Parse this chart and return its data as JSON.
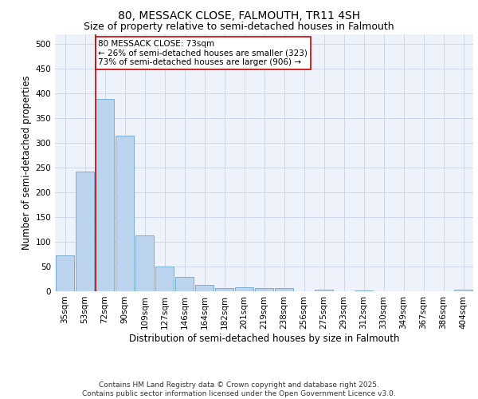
{
  "title_line1": "80, MESSACK CLOSE, FALMOUTH, TR11 4SH",
  "title_line2": "Size of property relative to semi-detached houses in Falmouth",
  "xlabel": "Distribution of semi-detached houses by size in Falmouth",
  "ylabel": "Number of semi-detached properties",
  "categories": [
    "35sqm",
    "53sqm",
    "72sqm",
    "90sqm",
    "109sqm",
    "127sqm",
    "146sqm",
    "164sqm",
    "182sqm",
    "201sqm",
    "219sqm",
    "238sqm",
    "256sqm",
    "275sqm",
    "293sqm",
    "312sqm",
    "330sqm",
    "349sqm",
    "367sqm",
    "386sqm",
    "404sqm"
  ],
  "values": [
    72,
    242,
    388,
    315,
    113,
    50,
    29,
    13,
    7,
    8,
    7,
    6,
    0,
    4,
    0,
    1,
    0,
    0,
    0,
    0,
    4
  ],
  "bar_color": "#bdd4ee",
  "bar_edge_color": "#7aaed6",
  "highlight_line_color": "#cc0000",
  "annotation_text": "80 MESSACK CLOSE: 73sqm\n← 26% of semi-detached houses are smaller (323)\n73% of semi-detached houses are larger (906) →",
  "annotation_box_color": "#ffffff",
  "annotation_box_edge_color": "#cc0000",
  "ylim": [
    0,
    520
  ],
  "yticks": [
    0,
    50,
    100,
    150,
    200,
    250,
    300,
    350,
    400,
    450,
    500
  ],
  "footer_text": "Contains HM Land Registry data © Crown copyright and database right 2025.\nContains public sector information licensed under the Open Government Licence v3.0.",
  "bg_color": "#eef2fa",
  "grid_color": "#c8d4e8",
  "title_fontsize": 10,
  "subtitle_fontsize": 9,
  "axis_label_fontsize": 8.5,
  "tick_fontsize": 7.5,
  "annotation_fontsize": 7.5,
  "footer_fontsize": 6.5
}
